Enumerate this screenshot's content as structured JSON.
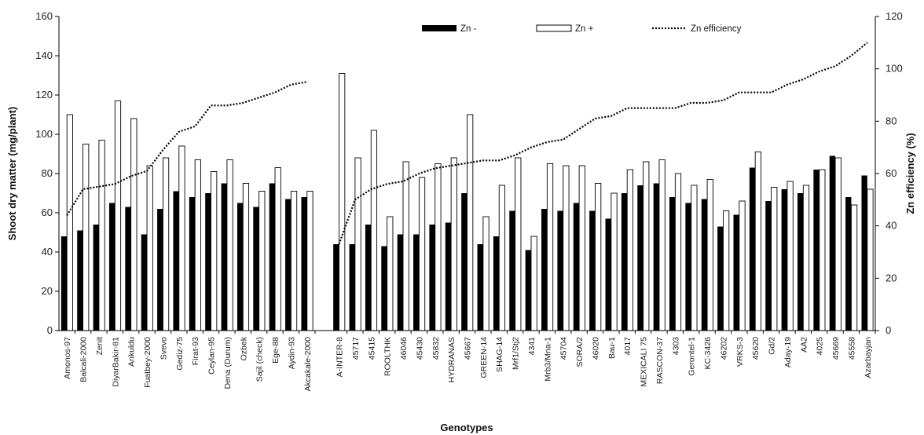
{
  "chart_data": {
    "type": "bar",
    "ylabel_left": "Shoot dry matter (mg/plant)",
    "ylabel_right": "Zn efficiency (%)",
    "xlabel": "Genotypes",
    "ylim_left": [
      0,
      160
    ],
    "ylim_right": [
      0,
      120
    ],
    "yticks_left": [
      "0",
      "20",
      "40",
      "60",
      "80",
      "100",
      "120",
      "140",
      "160"
    ],
    "yticks_right": [
      "0",
      "20",
      "40",
      "60",
      "80",
      "100",
      "120"
    ],
    "legend": {
      "zn_minus": "Zn -",
      "zn_plus": "Zn +",
      "efficiency": "Zn efficiency"
    },
    "groups": [
      {
        "categories": [
          "Amonos-97",
          "Balcali-2000",
          "Zenit",
          "DiyarBakir-81",
          "Ankuldu",
          "Fuatbey-2000",
          "Svevo",
          "Gediz-75",
          "Firat-93",
          "Ceylan-95",
          "Dena (Durum)",
          "Ozbek",
          "Sajil (check)",
          "Ege-88",
          "Aydin-93",
          "Akcakale-2000"
        ],
        "series": [
          {
            "name": "Zn -",
            "values": [
              48,
              51,
              54,
              65,
              63,
              49,
              62,
              71,
              68,
              70,
              75,
              65,
              63,
              75,
              67,
              68
            ]
          },
          {
            "name": "Zn +",
            "values": [
              110,
              95,
              97,
              117,
              108,
              84,
              88,
              94,
              87,
              81,
              87,
              75,
              71,
              83,
              71,
              71
            ]
          },
          {
            "name": "Zn efficiency",
            "values": [
              44,
              54,
              55,
              56,
              59,
              61,
              69,
              76,
              78,
              86,
              86,
              87,
              89,
              91,
              94,
              95
            ]
          }
        ]
      },
      {
        "categories": [
          "A-INTER-8",
          "45717",
          "45415",
          "ROOLTHK",
          "46046",
          "45430",
          "45832",
          "HYDRANAS",
          "45667",
          "GREEN-14",
          "SHAG-14",
          "Mrf1/Stj2",
          "4341",
          "Mrb3/Mna-1",
          "45704",
          "SORA/2",
          "46020",
          "Bau-1",
          "4017",
          "MEXICALI 75",
          "RASCON-37",
          "4303",
          "Gerontel-1",
          "KC-3426",
          "46202",
          "VRKS-3",
          "45620",
          "Gd/2",
          "Aday-19",
          "AA2",
          "4025",
          "45669",
          "45558",
          "Azarbayjan"
        ],
        "series": [
          {
            "name": "Zn -",
            "values": [
              44,
              44,
              54,
              43,
              49,
              49,
              54,
              55,
              70,
              44,
              48,
              61,
              41,
              62,
              61,
              65,
              61,
              57,
              70,
              74,
              75,
              68,
              65,
              67,
              53,
              59,
              83,
              66,
              72,
              70,
              82,
              89,
              68,
              79
            ]
          },
          {
            "name": "Zn +",
            "values": [
              131,
              88,
              102,
              58,
              86,
              78,
              85,
              88,
              110,
              58,
              74,
              88,
              48,
              85,
              84,
              84,
              75,
              70,
              82,
              86,
              87,
              80,
              74,
              77,
              61,
              66,
              91,
              73,
              76,
              74,
              82,
              88,
              64,
              72
            ]
          },
          {
            "name": "Zn efficiency",
            "values": [
              33,
              50,
              54,
              56,
              57,
              60,
              62,
              63,
              64,
              65,
              65,
              67,
              70,
              72,
              73,
              77,
              81,
              82,
              85,
              85,
              85,
              85,
              87,
              87,
              88,
              91,
              91,
              91,
              94,
              96,
              99,
              101,
              105,
              110
            ]
          }
        ]
      }
    ]
  }
}
